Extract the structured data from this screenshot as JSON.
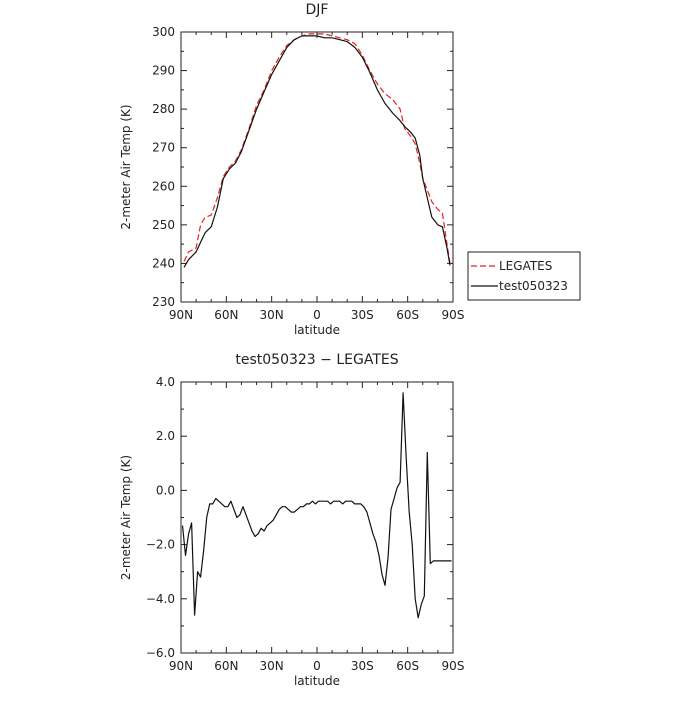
{
  "chart_data": [
    {
      "type": "line",
      "title": "DJF",
      "xlabel": "latitude",
      "ylabel": "2-meter Air Temp (K)",
      "xlim": [
        -90,
        90
      ],
      "ylim": [
        230,
        300
      ],
      "xticks": [
        -90,
        -60,
        -30,
        0,
        30,
        60,
        90
      ],
      "xtick_labels": [
        "90N",
        "60N",
        "30N",
        "0",
        "30S",
        "60S",
        "90S"
      ],
      "yticks": [
        230,
        240,
        250,
        260,
        270,
        280,
        290,
        300
      ],
      "ytick_labels": [
        "230",
        "240",
        "250",
        "260",
        "270",
        "280",
        "290",
        "300"
      ],
      "legend_position": "right",
      "series": [
        {
          "name": "LEGATES",
          "color": "#e8231f",
          "dash": "dashed",
          "x": [
            -88,
            -85,
            -80,
            -77,
            -74,
            -70,
            -66,
            -62,
            -58,
            -54,
            -50,
            -45,
            -40,
            -35,
            -30,
            -25,
            -20,
            -15,
            -10,
            -5,
            0,
            5,
            10,
            15,
            20,
            25,
            30,
            35,
            40,
            45,
            50,
            55,
            58,
            62,
            65,
            68,
            70,
            73,
            76,
            80,
            83,
            86,
            88
          ],
          "y": [
            240.5,
            243,
            244,
            250,
            252,
            252.5,
            257,
            262.5,
            265,
            266.5,
            269.5,
            275,
            281,
            285,
            290,
            293.5,
            296.5,
            298,
            299,
            299.5,
            299.5,
            299.5,
            299,
            298.5,
            298,
            297,
            294,
            290,
            286.5,
            284,
            282.5,
            280,
            275,
            273,
            271,
            266,
            262,
            259,
            256,
            254,
            253,
            245,
            240
          ]
        },
        {
          "name": "test050323",
          "color": "#111111",
          "dash": "solid",
          "x": [
            -88,
            -85,
            -80,
            -77,
            -74,
            -70,
            -66,
            -62,
            -58,
            -54,
            -50,
            -45,
            -40,
            -35,
            -30,
            -25,
            -20,
            -15,
            -10,
            -5,
            0,
            5,
            10,
            15,
            20,
            25,
            30,
            35,
            40,
            45,
            50,
            55,
            58,
            62,
            65,
            68,
            70,
            73,
            76,
            80,
            83,
            86,
            88
          ],
          "y": [
            239,
            241,
            243,
            245.5,
            248,
            249.5,
            254.5,
            262,
            264.5,
            266,
            269,
            274.5,
            280,
            284.5,
            289,
            292.5,
            296,
            298,
            299,
            299,
            299,
            298.5,
            298.5,
            298,
            297.5,
            296,
            293.5,
            289.5,
            285,
            281.5,
            279,
            277,
            275.5,
            274,
            272.5,
            268,
            262,
            257,
            252,
            250,
            249.5,
            244,
            239.5
          ]
        }
      ]
    },
    {
      "type": "line",
      "title": "test050323 − LEGATES",
      "xlabel": "latitude",
      "ylabel": "2-meter Air Temp (K)",
      "xlim": [
        -90,
        90
      ],
      "ylim": [
        -6,
        4
      ],
      "xticks": [
        -90,
        -60,
        -30,
        0,
        30,
        60,
        90
      ],
      "xtick_labels": [
        "90N",
        "60N",
        "30N",
        "0",
        "30S",
        "60S",
        "90S"
      ],
      "yticks": [
        -6,
        -4,
        -2,
        0,
        2,
        4
      ],
      "ytick_labels": [
        "−6.0",
        "−4.0",
        "−2.0",
        "0.0",
        "2.0",
        "4.0"
      ],
      "series": [
        {
          "name": "",
          "color": "#111111",
          "dash": "solid",
          "x": [
            -89,
            -87,
            -85,
            -83,
            -81,
            -79,
            -77,
            -75,
            -73,
            -71,
            -69,
            -67,
            -65,
            -63,
            -61,
            -59,
            -57,
            -55,
            -53,
            -51,
            -49,
            -47,
            -45,
            -43,
            -41,
            -39,
            -37,
            -35,
            -33,
            -31,
            -29,
            -27,
            -25,
            -23,
            -21,
            -19,
            -17,
            -15,
            -13,
            -11,
            -9,
            -7,
            -5,
            -3,
            -1,
            1,
            3,
            5,
            7,
            9,
            11,
            13,
            15,
            17,
            19,
            21,
            23,
            25,
            27,
            29,
            31,
            33,
            35,
            37,
            39,
            41,
            43,
            45,
            47,
            49,
            51,
            53,
            55,
            57,
            59,
            61,
            63,
            65,
            67,
            69,
            71,
            73,
            75,
            77,
            79,
            81,
            83,
            85,
            87,
            89
          ],
          "y": [
            -1.3,
            -2.4,
            -1.6,
            -1.2,
            -4.6,
            -3.0,
            -3.2,
            -2.2,
            -1.0,
            -0.5,
            -0.5,
            -0.3,
            -0.4,
            -0.5,
            -0.6,
            -0.6,
            -0.4,
            -0.7,
            -1.0,
            -0.9,
            -0.6,
            -0.9,
            -1.2,
            -1.5,
            -1.7,
            -1.6,
            -1.4,
            -1.5,
            -1.3,
            -1.2,
            -1.1,
            -0.9,
            -0.7,
            -0.6,
            -0.6,
            -0.7,
            -0.8,
            -0.8,
            -0.7,
            -0.6,
            -0.6,
            -0.5,
            -0.5,
            -0.4,
            -0.5,
            -0.4,
            -0.4,
            -0.4,
            -0.4,
            -0.5,
            -0.4,
            -0.4,
            -0.4,
            -0.5,
            -0.4,
            -0.4,
            -0.4,
            -0.5,
            -0.5,
            -0.5,
            -0.6,
            -0.8,
            -1.2,
            -1.6,
            -1.9,
            -2.4,
            -3.1,
            -3.5,
            -2.5,
            -0.7,
            -0.3,
            0.1,
            0.3,
            3.6,
            1.2,
            -0.8,
            -2.0,
            -4.0,
            -4.7,
            -4.2,
            -3.9,
            1.4,
            -2.7,
            -2.6,
            -2.6,
            -2.6,
            -2.6,
            -2.6,
            -2.6,
            -2.6
          ]
        }
      ]
    }
  ]
}
